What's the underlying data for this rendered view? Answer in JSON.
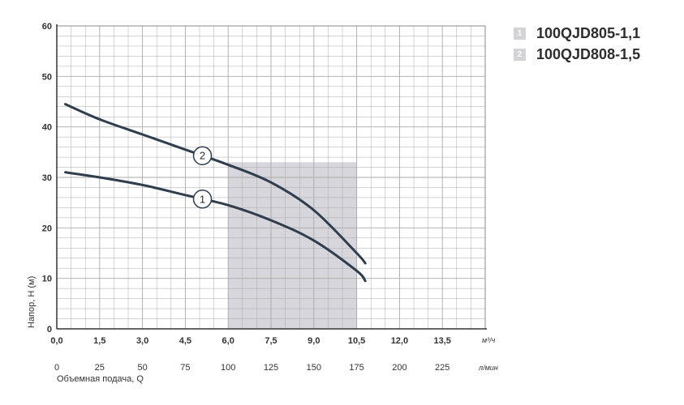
{
  "chart_data": {
    "type": "line",
    "xlabel": "Объемная подача, Q",
    "ylabel": "Напор, H (м)",
    "x_unit_primary": "м³/ч",
    "x_unit_secondary": "л/мин",
    "xlim": [
      0,
      15
    ],
    "ylim": [
      0,
      60
    ],
    "x_ticks_primary": [
      "0,0",
      "1,5",
      "3,0",
      "4,5",
      "6,0",
      "7,5",
      "9,0",
      "10,5",
      "12,0",
      "13,5"
    ],
    "x_ticks_secondary": [
      "0",
      "25",
      "50",
      "75",
      "100",
      "125",
      "150",
      "175",
      "200",
      "225"
    ],
    "y_ticks": [
      "0",
      "10",
      "20",
      "30",
      "40",
      "50",
      "60"
    ],
    "grid": true,
    "series": [
      {
        "name": "100QJD805-1,1",
        "marker": "1",
        "x": [
          0.3,
          1.5,
          3.0,
          4.5,
          6.0,
          7.5,
          9.0,
          10.5,
          10.8
        ],
        "y": [
          31.0,
          30.0,
          28.5,
          26.5,
          24.5,
          21.5,
          17.5,
          11.5,
          9.5
        ]
      },
      {
        "name": "100QJD808-1,5",
        "marker": "2",
        "x": [
          0.3,
          1.5,
          3.0,
          4.5,
          6.0,
          7.5,
          9.0,
          10.5,
          10.8
        ],
        "y": [
          44.5,
          41.5,
          38.5,
          35.5,
          32.5,
          29.0,
          23.5,
          15.0,
          13.0
        ]
      }
    ],
    "working_range": [
      6.0,
      10.5
    ],
    "label_positions_x": [
      5.1,
      5.1
    ],
    "colors": {
      "line": "#2f3d4d",
      "grid": "#aaaaaa",
      "shade": "#d6d6dc",
      "marker_fill": "#ffffff"
    }
  },
  "legend": [
    {
      "number": "1",
      "label": "100QJD805-1,1"
    },
    {
      "number": "2",
      "label": "100QJD808-1,5"
    }
  ]
}
